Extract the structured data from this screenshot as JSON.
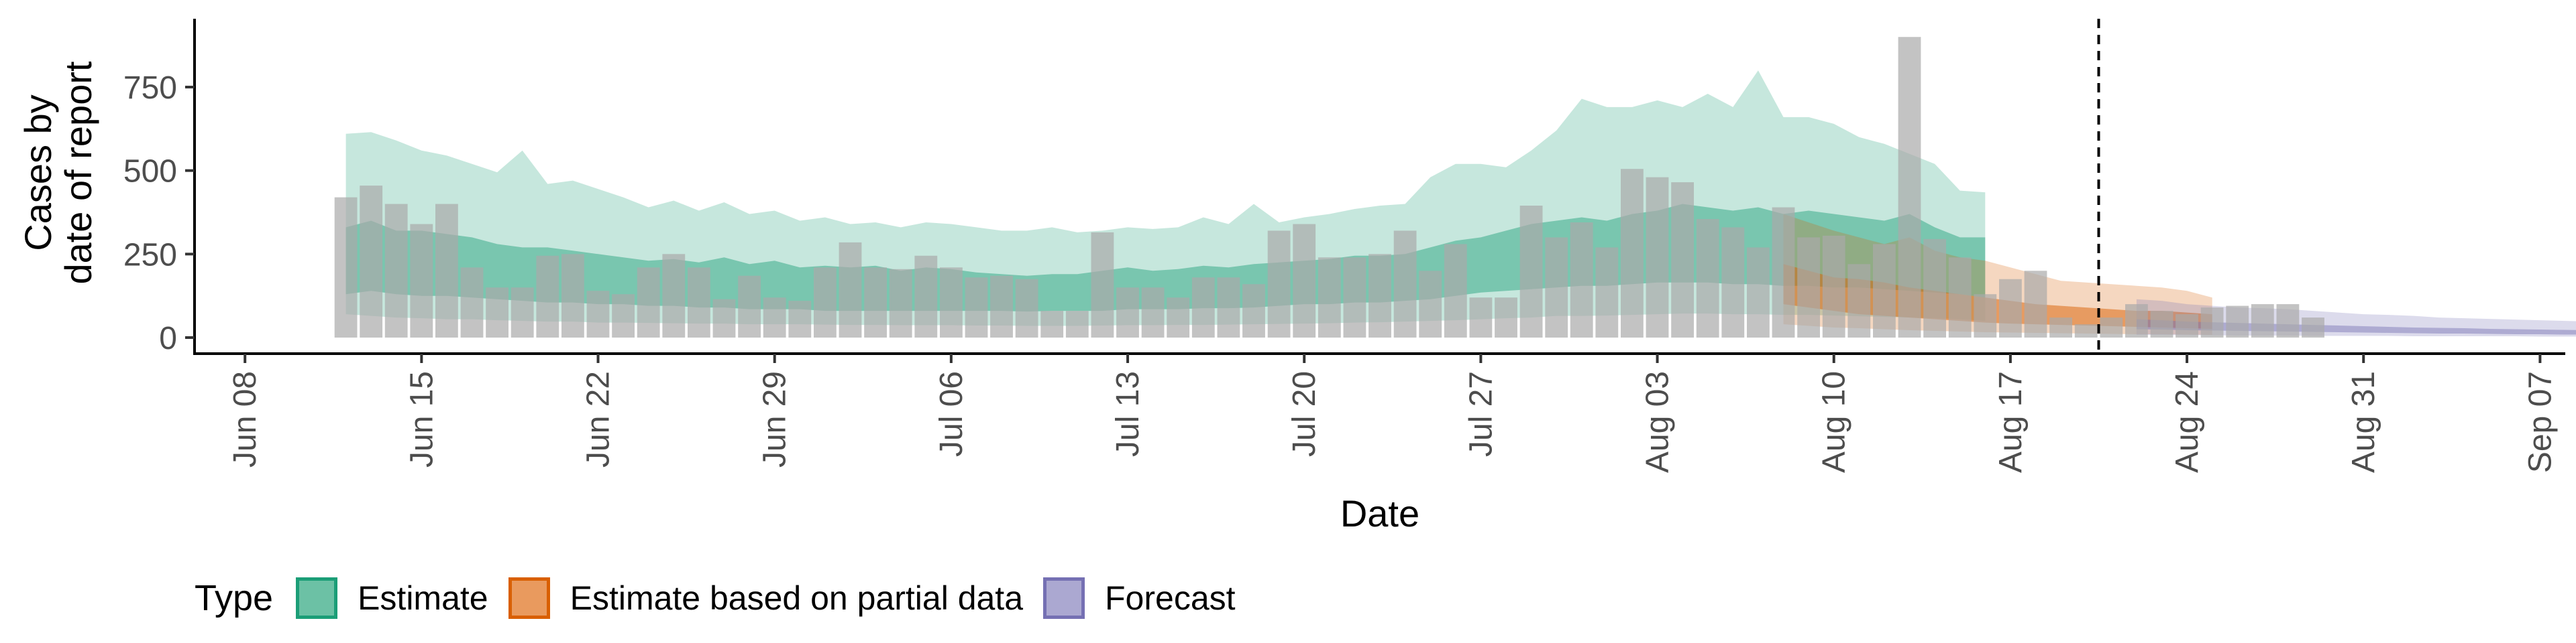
{
  "chart_data": {
    "type": "bar",
    "xlabel": "Date",
    "ylabel_lines": [
      "Cases by",
      "date of report"
    ],
    "ylim": [
      0,
      960
    ],
    "yticks": [
      0,
      250,
      500,
      750
    ],
    "xlim": [
      "2020-06-06",
      "2020-09-08"
    ],
    "xticks": [
      {
        "date": "2020-06-08",
        "label": "Jun 08"
      },
      {
        "date": "2020-06-15",
        "label": "Jun 15"
      },
      {
        "date": "2020-06-22",
        "label": "Jun 22"
      },
      {
        "date": "2020-06-29",
        "label": "Jun 29"
      },
      {
        "date": "2020-07-06",
        "label": "Jul 06"
      },
      {
        "date": "2020-07-13",
        "label": "Jul 13"
      },
      {
        "date": "2020-07-20",
        "label": "Jul 20"
      },
      {
        "date": "2020-07-27",
        "label": "Jul 27"
      },
      {
        "date": "2020-08-03",
        "label": "Aug 03"
      },
      {
        "date": "2020-08-10",
        "label": "Aug 10"
      },
      {
        "date": "2020-08-17",
        "label": "Aug 17"
      },
      {
        "date": "2020-08-24",
        "label": "Aug 24"
      },
      {
        "date": "2020-08-31",
        "label": "Aug 31"
      },
      {
        "date": "2020-09-07",
        "label": "Sep 07"
      }
    ],
    "vline_date": "2020-08-21",
    "grid": false,
    "legend_position": "bottom",
    "legend": {
      "title": "Type",
      "items": [
        {
          "label": "Estimate",
          "fill": "#6cc1a5",
          "stroke": "#1b9e77"
        },
        {
          "label": "Estimate based on partial data",
          "fill": "#e99a5e",
          "stroke": "#d95f02"
        },
        {
          "label": "Forecast",
          "fill": "#aba8d1",
          "stroke": "#7570b3"
        }
      ]
    },
    "series_colors": {
      "Estimate": {
        "outer": "#1b9e77",
        "inner": "#1b9e77"
      },
      "Estimate based on partial data": {
        "outer": "#d95f02",
        "inner": "#d95f02"
      },
      "Forecast": {
        "outer": "#7570b3",
        "inner": "#7570b3"
      },
      "bars": "#aaaaaa"
    },
    "reported_cases": {
      "start_date": "2020-06-12",
      "values": [
        420,
        455,
        400,
        340,
        400,
        210,
        150,
        150,
        245,
        250,
        140,
        130,
        210,
        250,
        210,
        115,
        185,
        120,
        110,
        210,
        285,
        210,
        205,
        245,
        210,
        180,
        185,
        175,
        80,
        80,
        315,
        150,
        150,
        120,
        180,
        180,
        160,
        320,
        340,
        240,
        240,
        250,
        320,
        200,
        280,
        120,
        120,
        395,
        300,
        345,
        270,
        505,
        480,
        465,
        355,
        330,
        270,
        390,
        300,
        305,
        220,
        280,
        900,
        295,
        240,
        130,
        175,
        200,
        60,
        40,
        60,
        100,
        80,
        70,
        90,
        95,
        100,
        100,
        60
      ]
    },
    "estimate": {
      "start_date": "2020-06-12",
      "outer_upper": [
        610,
        615,
        590,
        560,
        545,
        520,
        495,
        560,
        460,
        470,
        445,
        420,
        390,
        410,
        380,
        405,
        370,
        380,
        350,
        360,
        340,
        345,
        330,
        345,
        340,
        330,
        320,
        320,
        330,
        315,
        320,
        330,
        325,
        330,
        360,
        340,
        400,
        345,
        360,
        370,
        385,
        395,
        400,
        480,
        520,
        520,
        510,
        560,
        620,
        715,
        690,
        690,
        710,
        690,
        730,
        690,
        800,
        660,
        660,
        640,
        600,
        580,
        550,
        520,
        440,
        435
      ],
      "inner_upper": [
        330,
        350,
        320,
        320,
        310,
        300,
        280,
        270,
        270,
        260,
        250,
        240,
        230,
        235,
        225,
        240,
        220,
        230,
        210,
        215,
        210,
        215,
        200,
        210,
        205,
        195,
        190,
        185,
        190,
        190,
        200,
        210,
        200,
        205,
        215,
        210,
        220,
        225,
        230,
        235,
        245,
        245,
        250,
        270,
        290,
        300,
        320,
        340,
        350,
        360,
        350,
        370,
        380,
        400,
        390,
        380,
        390,
        370,
        380,
        370,
        360,
        350,
        370,
        330,
        300,
        300
      ],
      "inner_lower": [
        130,
        140,
        130,
        125,
        125,
        120,
        115,
        110,
        105,
        105,
        100,
        100,
        95,
        95,
        90,
        90,
        85,
        85,
        85,
        80,
        80,
        80,
        80,
        80,
        80,
        80,
        80,
        78,
        80,
        80,
        80,
        85,
        85,
        85,
        88,
        88,
        90,
        95,
        100,
        100,
        105,
        105,
        110,
        115,
        125,
        135,
        140,
        145,
        150,
        155,
        155,
        160,
        165,
        165,
        165,
        160,
        160,
        155,
        155,
        150,
        150,
        145,
        140,
        135,
        130,
        120
      ],
      "outer_lower": [
        70,
        65,
        60,
        58,
        55,
        55,
        52,
        50,
        48,
        48,
        45,
        45,
        44,
        43,
        42,
        42,
        40,
        40,
        40,
        39,
        38,
        38,
        37,
        37,
        37,
        36,
        36,
        35,
        35,
        35,
        36,
        37,
        37,
        38,
        38,
        39,
        40,
        41,
        42,
        43,
        45,
        46,
        48,
        50,
        52,
        55,
        58,
        60,
        65,
        65,
        66,
        68,
        70,
        72,
        72,
        70,
        70,
        68,
        68,
        66,
        64,
        62,
        60,
        58,
        55,
        50
      ]
    },
    "partial": {
      "start_date": "2020-08-08",
      "outer_upper": [
        370,
        345,
        320,
        300,
        280,
        300,
        260,
        240,
        230,
        210,
        190,
        170,
        165,
        160,
        155,
        150,
        140,
        120
      ],
      "inner_upper": [
        220,
        200,
        180,
        175,
        165,
        150,
        140,
        130,
        120,
        110,
        100,
        95,
        90,
        85,
        80,
        80,
        75,
        70
      ],
      "inner_lower": [
        100,
        90,
        80,
        70,
        65,
        60,
        55,
        50,
        45,
        42,
        40,
        38,
        36,
        34,
        32,
        30,
        28,
        26
      ],
      "outer_lower": [
        40,
        35,
        30,
        28,
        25,
        22,
        20,
        18,
        16,
        15,
        14,
        13,
        12,
        11,
        10,
        10,
        9,
        8
      ]
    },
    "forecast": {
      "start_date": "2020-08-22",
      "outer_upper": [
        115,
        110,
        100,
        95,
        90,
        88,
        85,
        80,
        75,
        70,
        68,
        65,
        60,
        58,
        56,
        54,
        52,
        50,
        48,
        46
      ],
      "inner_upper": [
        55,
        52,
        48,
        46,
        44,
        42,
        40,
        38,
        36,
        34,
        32,
        30,
        29,
        28,
        26,
        25,
        24,
        23,
        22,
        21
      ],
      "inner_lower": [
        25,
        24,
        22,
        21,
        20,
        19,
        18,
        17,
        16,
        15,
        14,
        13,
        12,
        12,
        11,
        10,
        10,
        9,
        9,
        8
      ],
      "outer_lower": [
        8,
        8,
        7,
        7,
        6,
        6,
        6,
        5,
        5,
        5,
        5,
        4,
        4,
        4,
        4,
        4,
        3,
        3,
        3,
        3
      ]
    }
  }
}
